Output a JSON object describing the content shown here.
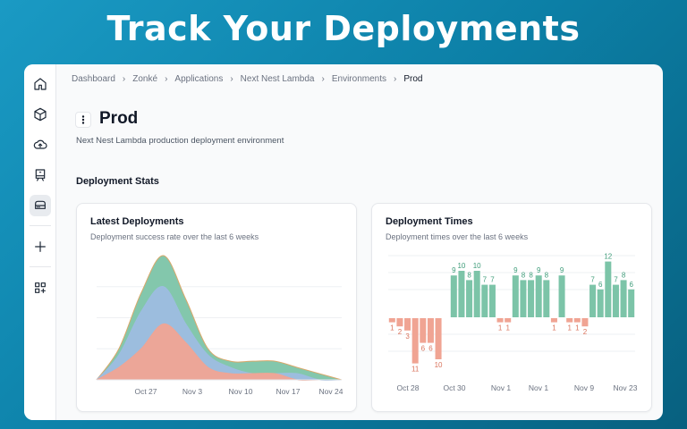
{
  "hero": {
    "title": "Track Your Deployments"
  },
  "sidebar": {
    "items": [
      {
        "name": "home",
        "icon": "home-icon"
      },
      {
        "name": "packages",
        "icon": "box-icon"
      },
      {
        "name": "upload",
        "icon": "cloud-upload-icon"
      },
      {
        "name": "board",
        "icon": "board-icon"
      },
      {
        "name": "environments",
        "icon": "drive-icon",
        "active": true
      },
      {
        "name": "add",
        "icon": "plus-icon"
      },
      {
        "name": "apps",
        "icon": "apps-add-icon"
      }
    ]
  },
  "breadcrumb": [
    "Dashboard",
    "Zonké",
    "Applications",
    "Next Nest Lambda",
    "Environments",
    "Prod"
  ],
  "page": {
    "title": "Prod",
    "description": "Next Nest Lambda production deployment environment",
    "section_title": "Deployment Stats"
  },
  "cards": {
    "latest": {
      "title": "Latest Deployments",
      "subtitle": "Deployment success rate over the last 6 weeks"
    },
    "times": {
      "title": "Deployment Times",
      "subtitle": "Deployment times over the last 6 weeks"
    }
  },
  "colors": {
    "success": "#7cc4a8",
    "failure": "#f0a493",
    "other": "#9dbde0"
  },
  "chart_data": [
    {
      "type": "area",
      "x_ticks": [
        "Oct 27",
        "Nov 3",
        "Nov 10",
        "Nov 17",
        "Nov 24"
      ],
      "x": [
        0,
        1,
        2,
        3,
        4,
        5,
        6,
        7,
        8,
        9,
        10,
        11
      ],
      "series": [
        {
          "values": [
            0,
            5,
            14,
            20,
            13,
            5,
            3,
            3,
            3,
            2,
            1,
            0
          ],
          "color": "#7cc4a8"
        },
        {
          "values": [
            0,
            4,
            11,
            15,
            9,
            4,
            2,
            1,
            1,
            1,
            0,
            0
          ],
          "color": "#9dbde0"
        },
        {
          "values": [
            0,
            2,
            5,
            9,
            6,
            2,
            1,
            1,
            1,
            0,
            0,
            0
          ],
          "color": "#f0a493"
        }
      ],
      "grid": true
    },
    {
      "type": "bar",
      "x_ticks": [
        "Oct 28",
        "Oct 30",
        "Nov 1",
        "Nov 1",
        "Nov 9",
        "Nov 23"
      ],
      "series": [
        {
          "name": "success",
          "color": "#7cc4a8",
          "values": [
            0,
            0,
            0,
            0,
            0,
            0,
            0,
            0,
            9,
            10,
            8,
            10,
            7,
            7,
            0,
            0,
            9,
            8,
            8,
            9,
            8,
            0,
            9,
            0,
            0,
            0,
            7,
            6,
            12,
            7,
            8,
            6
          ]
        },
        {
          "name": "failure",
          "color": "#f0a493",
          "values": [
            1,
            2,
            3,
            11,
            6,
            6,
            10,
            0,
            0,
            0,
            0,
            0,
            0,
            0,
            1,
            1,
            0,
            0,
            0,
            0,
            0,
            1,
            0,
            1,
            1,
            2,
            0,
            0,
            0,
            0,
            0,
            0
          ]
        }
      ],
      "data_labels": true,
      "grid": true
    }
  ]
}
